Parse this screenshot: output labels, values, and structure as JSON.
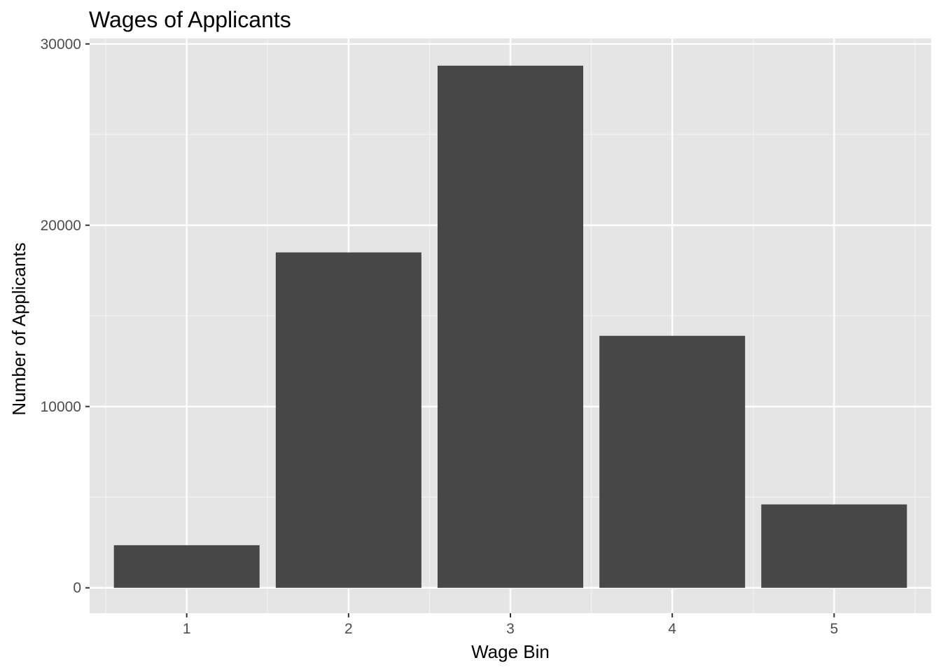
{
  "chart_data": {
    "type": "bar",
    "title": "Wages of Applicants",
    "xlabel": "Wage Bin",
    "ylabel": "Number of Applicants",
    "categories": [
      "1",
      "2",
      "3",
      "4",
      "5"
    ],
    "values": [
      2350,
      18500,
      28800,
      13900,
      4600
    ],
    "yticks": [
      0,
      10000,
      20000,
      30000
    ],
    "yticks_labels": [
      "0",
      "10000",
      "20000",
      "30000"
    ],
    "ylim": [
      -1400,
      30300
    ],
    "grid": true,
    "colors": {
      "panel_background": "#e5e5e5",
      "grid_major": "#ffffff",
      "grid_minor": "#f2f2f2",
      "bar_fill": "#474747",
      "tick_color": "#333333"
    }
  }
}
